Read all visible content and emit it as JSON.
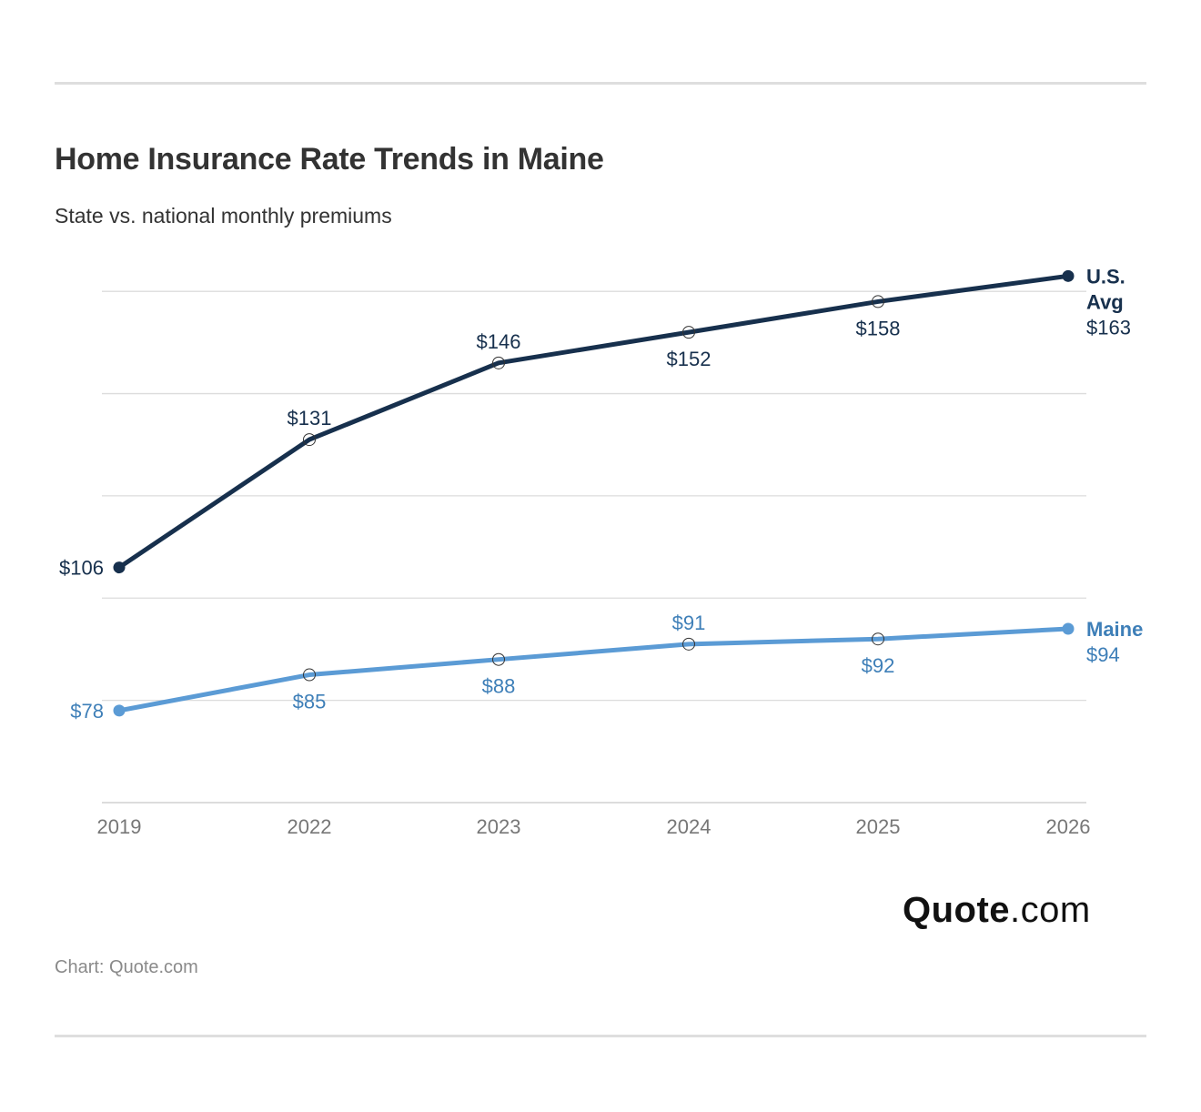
{
  "header": {
    "title": "Home Insurance Rate Trends in Maine",
    "subtitle": "State vs. national monthly premiums"
  },
  "footer": {
    "logo_strong": "Quote",
    "logo_light": ".com",
    "credit": "Chart: Quote.com"
  },
  "chart_data": {
    "type": "line",
    "title": "Home Insurance Rate Trends in Maine",
    "subtitle": "State vs. national monthly premiums",
    "categories": [
      "2019",
      "2022",
      "2023",
      "2024",
      "2025",
      "2026"
    ],
    "ylim": [
      60,
      170
    ],
    "grid": true,
    "legend": "direct labels at line ends",
    "series": [
      {
        "name": "U.S. Avg",
        "end_label_lines": [
          "U.S.",
          "Avg"
        ],
        "color": "#17304d",
        "values": [
          106,
          131,
          146,
          152,
          158,
          163
        ],
        "labels": [
          "$106",
          "$131",
          "$146",
          "$152",
          "$158",
          "$163"
        ]
      },
      {
        "name": "Maine",
        "end_label_lines": [
          "Maine"
        ],
        "color": "#5b9bd5",
        "label_color": "#3e7fb8",
        "values": [
          78,
          85,
          88,
          91,
          92,
          94
        ],
        "labels": [
          "$78",
          "$85",
          "$88",
          "$91",
          "$92",
          "$94"
        ]
      }
    ]
  }
}
